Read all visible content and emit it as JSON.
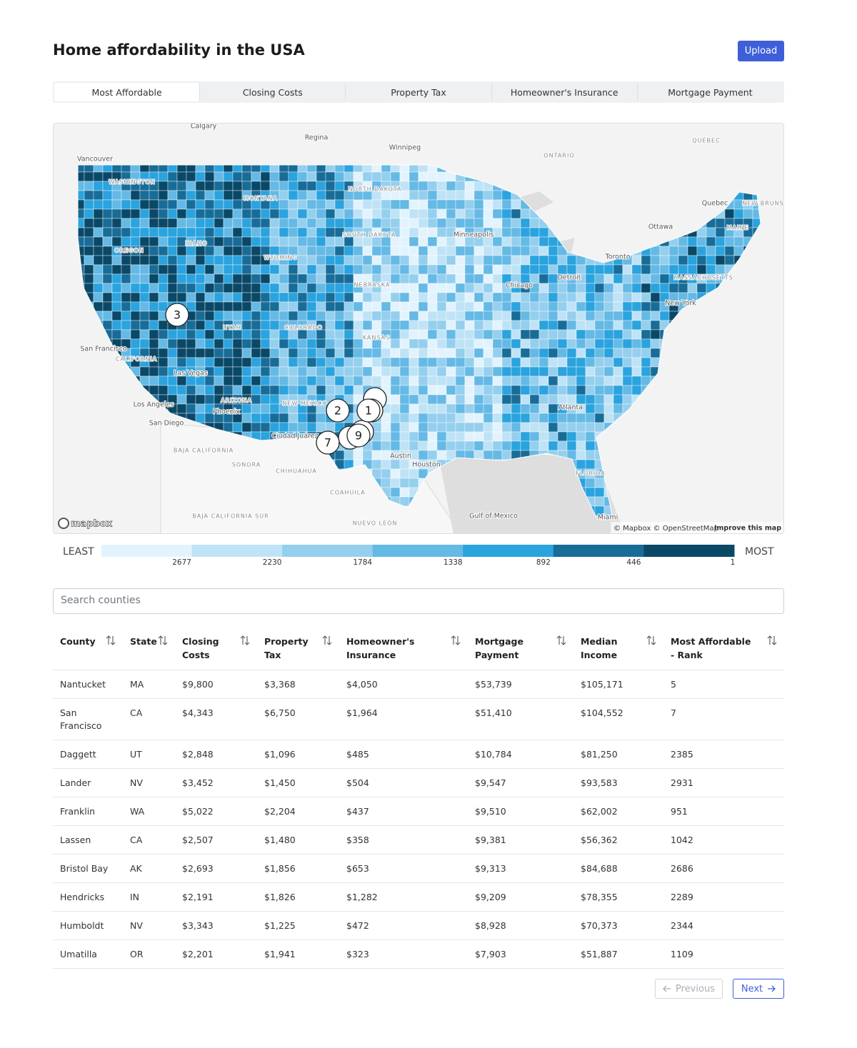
{
  "header": {
    "title": "Home affordability in the USA",
    "upload": "Upload"
  },
  "tabs": [
    "Most Affordable",
    "Closing Costs",
    "Property Tax",
    "Homeowner's Insurance",
    "Mortgage Payment"
  ],
  "active_tab": 0,
  "map": {
    "labels": [
      "Calgary",
      "Regina",
      "Winnipeg",
      "Vancouver",
      "ONTARIO",
      "QUÉBEC",
      "Quebec",
      "Ottawa",
      "Toronto",
      "Detroit",
      "Chicago",
      "Minneapolis",
      "WASHINGTON",
      "OREGON",
      "IDAHO",
      "MONTANA",
      "WYOMING",
      "NORTH DAKOTA",
      "SOUTH DAKOTA",
      "NEBRASKA",
      "KANSAS",
      "COLORADO",
      "UTAH",
      "CALIFORNIA",
      "San Francisco",
      "Los Angeles",
      "San Diego",
      "Las Vegas",
      "ARIZONA",
      "Phoenix",
      "NEW MEXICO",
      "Ciudad Juárez",
      "SONORA",
      "CHIHUAHUA",
      "COAHUILA",
      "NUEVO LEÓN",
      "BAJA CALIFORNIA",
      "BAJA CALIFORNIA SUR",
      "Houston",
      "Austin",
      "Gulf of Mexico",
      "Miami",
      "FLORIDA",
      "Atlanta",
      "New York",
      "MASSACHUSETTS",
      "MAINE",
      "NEW BRUNSWICK"
    ],
    "clusters": [
      3,
      2,
      1,
      9,
      7
    ],
    "logo": "mapbox",
    "attribution": "© Mapbox © OpenStreetMap",
    "improve": "Improve this map"
  },
  "legend": {
    "least": "LEAST",
    "most": "MOST",
    "ticks": [
      2677,
      2230,
      1784,
      1338,
      892,
      446,
      1
    ],
    "colors": [
      "#e2f3fd",
      "#bfe3f6",
      "#95cfee",
      "#65b9e5",
      "#2aa3de",
      "#186c98",
      "#0a4867"
    ]
  },
  "search": {
    "placeholder": "Search counties"
  },
  "table": {
    "columns": [
      "County",
      "State",
      "Closing Costs",
      "Property Tax",
      "Homeowner's Insurance",
      "Mortgage Payment",
      "Median Income",
      "Most Affordable - Rank"
    ],
    "rows": [
      [
        "Nantucket",
        "MA",
        "$9,800",
        "$3,368",
        "$4,050",
        "$53,739",
        "$105,171",
        "5"
      ],
      [
        "San Francisco",
        "CA",
        "$4,343",
        "$6,750",
        "$1,964",
        "$51,410",
        "$104,552",
        "7"
      ],
      [
        "Daggett",
        "UT",
        "$2,848",
        "$1,096",
        "$485",
        "$10,784",
        "$81,250",
        "2385"
      ],
      [
        "Lander",
        "NV",
        "$3,452",
        "$1,450",
        "$504",
        "$9,547",
        "$93,583",
        "2931"
      ],
      [
        "Franklin",
        "WA",
        "$5,022",
        "$2,204",
        "$437",
        "$9,510",
        "$62,002",
        "951"
      ],
      [
        "Lassen",
        "CA",
        "$2,507",
        "$1,480",
        "$358",
        "$9,381",
        "$56,362",
        "1042"
      ],
      [
        "Bristol Bay",
        "AK",
        "$2,693",
        "$1,856",
        "$653",
        "$9,313",
        "$84,688",
        "2686"
      ],
      [
        "Hendricks",
        "IN",
        "$2,191",
        "$1,826",
        "$1,282",
        "$9,209",
        "$78,355",
        "2289"
      ],
      [
        "Humboldt",
        "NV",
        "$3,343",
        "$1,225",
        "$472",
        "$8,928",
        "$70,373",
        "2344"
      ],
      [
        "Umatilla",
        "OR",
        "$2,201",
        "$1,941",
        "$323",
        "$7,903",
        "$51,887",
        "1109"
      ]
    ]
  },
  "pagination": {
    "previous": "Previous",
    "next": "Next"
  }
}
